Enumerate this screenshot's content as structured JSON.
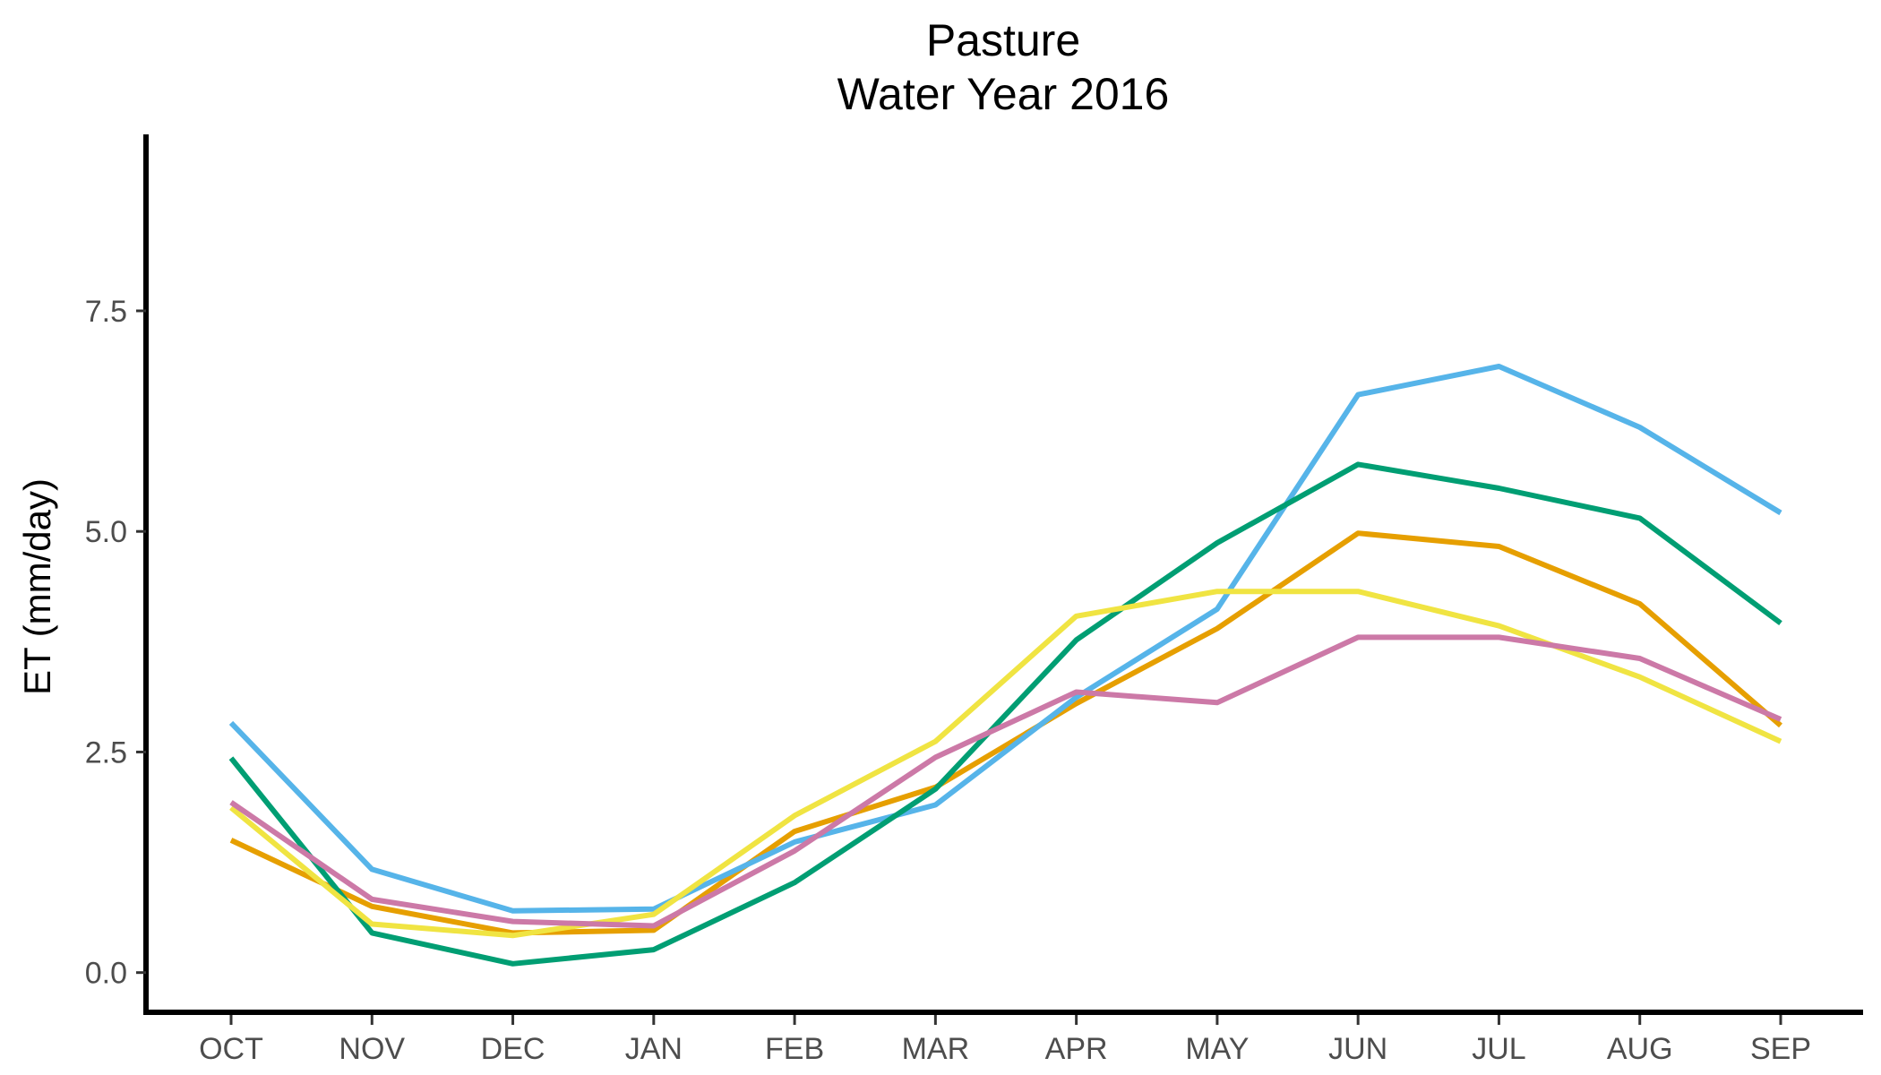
{
  "chart_data": {
    "type": "line",
    "title": "Pasture",
    "subtitle": "Water Year 2016",
    "xlabel": "",
    "ylabel": "ET (mm/day)",
    "categories": [
      "OCT",
      "NOV",
      "DEC",
      "JAN",
      "FEB",
      "MAR",
      "APR",
      "MAY",
      "JUN",
      "JUL",
      "AUG",
      "SEP"
    ],
    "ylim": [
      -0.45,
      9.5
    ],
    "yticks": [
      0.0,
      2.5,
      5.0,
      7.5
    ],
    "ytick_labels": [
      "0.0",
      "2.5",
      "5.0",
      "7.5"
    ],
    "grid": false,
    "legend": "none",
    "series": [
      {
        "color": "#E69F00",
        "values": [
          1.5,
          0.75,
          0.45,
          0.48,
          1.6,
          2.1,
          3.05,
          3.9,
          4.98,
          4.83,
          4.18,
          2.8
        ]
      },
      {
        "color": "#56B4E9",
        "values": [
          2.83,
          1.17,
          0.7,
          0.72,
          1.48,
          1.9,
          3.12,
          4.12,
          6.55,
          6.87,
          6.18,
          5.21
        ]
      },
      {
        "color": "#009E73",
        "values": [
          2.43,
          0.45,
          0.1,
          0.26,
          1.02,
          2.08,
          3.77,
          4.87,
          5.76,
          5.49,
          5.15,
          3.96
        ]
      },
      {
        "color": "#F0E442",
        "values": [
          1.87,
          0.55,
          0.42,
          0.66,
          1.78,
          2.62,
          4.04,
          4.32,
          4.32,
          3.93,
          3.35,
          2.62
        ]
      },
      {
        "color": "#CC79A7",
        "values": [
          1.93,
          0.83,
          0.58,
          0.53,
          1.38,
          2.44,
          3.18,
          3.06,
          3.8,
          3.8,
          3.56,
          2.87
        ]
      }
    ]
  }
}
